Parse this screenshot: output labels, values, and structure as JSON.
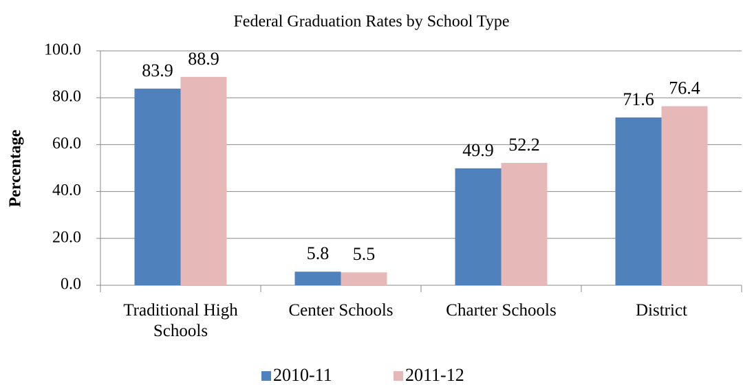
{
  "chart_data": {
    "type": "bar",
    "title": "Federal Graduation Rates by School Type",
    "y_label": "Percentage",
    "categories": [
      "Traditional High Schools",
      "Center Schools",
      "Charter Schools",
      "District"
    ],
    "series": [
      {
        "name": "2010-11",
        "color": "#4f81bd",
        "values": [
          83.9,
          5.8,
          49.9,
          71.6
        ]
      },
      {
        "name": "2011-12",
        "color": "#e6b9b8",
        "values": [
          88.9,
          5.5,
          52.2,
          76.4
        ]
      }
    ],
    "ylim": [
      0,
      100
    ],
    "yticks": [
      {
        "value": 0,
        "label": "0.0"
      },
      {
        "value": 20,
        "label": "20.0"
      },
      {
        "value": 40,
        "label": "40.0"
      },
      {
        "value": 60,
        "label": "60.0"
      },
      {
        "value": 80,
        "label": "80.0"
      },
      {
        "value": 100,
        "label": "100.0"
      }
    ],
    "grid": true,
    "legend": "bottom"
  }
}
